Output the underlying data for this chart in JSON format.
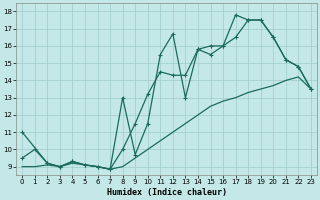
{
  "bg_color": "#c4e8e8",
  "grid_color": "#a0cccc",
  "line_color": "#1a6b5a",
  "xlabel": "Humidex (Indice chaleur)",
  "xlim": [
    -0.5,
    23.5
  ],
  "ylim": [
    8.5,
    18.5
  ],
  "yticks": [
    9,
    10,
    11,
    12,
    13,
    14,
    15,
    16,
    17,
    18
  ],
  "xticks": [
    0,
    1,
    2,
    3,
    4,
    5,
    6,
    7,
    8,
    9,
    10,
    11,
    12,
    13,
    14,
    15,
    16,
    17,
    18,
    19,
    20,
    21,
    22,
    23
  ],
  "line1_x": [
    0,
    1,
    2,
    3,
    4,
    5,
    6,
    7,
    8,
    9,
    10,
    11,
    12,
    13,
    14,
    15,
    16,
    17,
    18,
    19,
    20,
    21,
    22,
    23
  ],
  "line1_y": [
    9.0,
    9.0,
    9.1,
    9.0,
    9.2,
    9.1,
    9.0,
    8.85,
    9.0,
    9.5,
    10.0,
    10.5,
    11.0,
    11.5,
    12.0,
    12.5,
    12.8,
    13.0,
    13.3,
    13.5,
    13.7,
    14.0,
    14.2,
    13.5
  ],
  "line2_x": [
    0,
    1,
    2,
    3,
    4,
    5,
    6,
    7,
    8,
    9,
    10,
    11,
    12,
    13,
    14,
    15,
    16,
    17,
    18,
    19,
    20,
    21,
    22,
    23
  ],
  "line2_y": [
    9.5,
    10.0,
    9.2,
    9.0,
    9.3,
    9.1,
    9.0,
    8.85,
    10.0,
    11.5,
    13.2,
    14.5,
    14.3,
    14.3,
    15.8,
    16.0,
    16.0,
    16.5,
    17.5,
    17.5,
    16.5,
    15.2,
    14.8,
    13.5
  ],
  "line3_x": [
    0,
    2,
    3,
    4,
    5,
    6,
    7,
    8,
    9,
    10,
    11,
    12,
    13,
    14,
    15,
    16,
    17,
    18,
    19,
    20,
    21,
    22,
    23
  ],
  "line3_y": [
    11.0,
    9.2,
    9.0,
    9.3,
    9.1,
    9.0,
    8.85,
    13.0,
    9.7,
    11.5,
    15.5,
    16.7,
    13.0,
    15.8,
    15.5,
    16.0,
    17.8,
    17.5,
    17.5,
    16.5,
    15.2,
    14.8,
    13.5
  ]
}
